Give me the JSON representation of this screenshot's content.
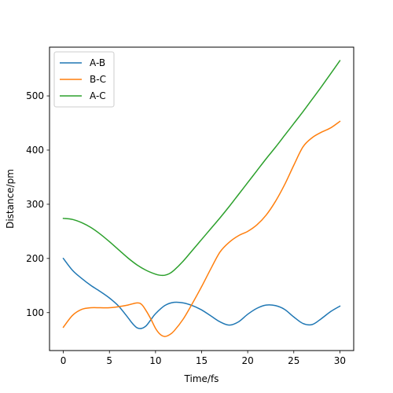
{
  "chart_data": {
    "type": "line",
    "xlabel": "Time/fs",
    "ylabel": "Distance/pm",
    "xlim": [
      -1.5,
      31.5
    ],
    "ylim": [
      30,
      590
    ],
    "xticks": [
      0,
      5,
      10,
      15,
      20,
      25,
      30
    ],
    "yticks": [
      100,
      200,
      300,
      400,
      500
    ],
    "grid": false,
    "legend_position": "top-left",
    "series": [
      {
        "name": "A-B",
        "color": "#1f77b4",
        "x": [
          0,
          1,
          2,
          3,
          4,
          5,
          6,
          7,
          7.5,
          8,
          8.5,
          9,
          9.5,
          10,
          11,
          12,
          13,
          14,
          15,
          16,
          17,
          18,
          19,
          20,
          21,
          22,
          23,
          24,
          25,
          26,
          27,
          28,
          29,
          30
        ],
        "y": [
          200,
          178,
          163,
          150,
          139,
          127,
          112,
          91,
          80,
          72,
          71,
          76,
          87,
          98,
          113,
          119,
          118,
          113,
          105,
          94,
          83,
          77,
          83,
          97,
          108,
          114,
          113,
          106,
          92,
          80,
          78,
          89,
          102,
          112
        ]
      },
      {
        "name": "B-C",
        "color": "#ff7f0e",
        "x": [
          0,
          1,
          2,
          3,
          4,
          5,
          6,
          7,
          8,
          8.5,
          9,
          9.5,
          10,
          10.5,
          11,
          11.5,
          12,
          13,
          14,
          15,
          16,
          17,
          18,
          19,
          20,
          21,
          22,
          23,
          24,
          25,
          26,
          27,
          28,
          29,
          30
        ],
        "y": [
          73,
          95,
          106,
          109,
          109,
          109,
          111,
          114,
          118,
          115,
          103,
          88,
          71,
          60,
          56,
          59,
          66,
          88,
          117,
          148,
          181,
          212,
          230,
          242,
          250,
          262,
          280,
          305,
          336,
          372,
          406,
          423,
          433,
          441,
          453
        ]
      },
      {
        "name": "A-C",
        "color": "#2ca02c",
        "x": [
          0,
          1,
          2,
          3,
          4,
          5,
          6,
          7,
          8,
          9,
          10,
          10.5,
          11,
          11.5,
          12,
          13,
          14,
          15,
          16,
          17,
          18,
          19,
          20,
          21,
          22,
          23,
          24,
          25,
          26,
          27,
          28,
          29,
          30
        ],
        "y": [
          274,
          272,
          266,
          257,
          245,
          231,
          216,
          201,
          188,
          178,
          171,
          169,
          169,
          172,
          178,
          195,
          215,
          235,
          255,
          275,
          296,
          318,
          340,
          362,
          384,
          405,
          427,
          449,
          471,
          494,
          517,
          541,
          565
        ]
      }
    ]
  }
}
